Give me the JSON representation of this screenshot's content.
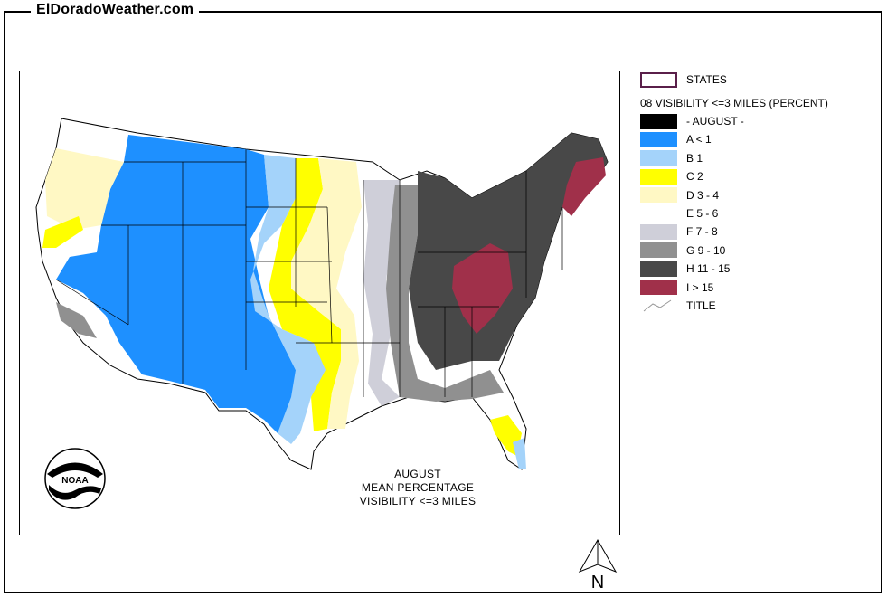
{
  "site": {
    "title": "ElDoradoWeather.com"
  },
  "map": {
    "caption": [
      "AUGUST",
      "MEAN PERCENTAGE",
      "VISIBILITY <=3 MILES"
    ],
    "logo_text": "NOAA",
    "north_label": "N"
  },
  "legend": {
    "states_label": "STATES",
    "layer_title": "08 VISIBILITY <=3 MILES (PERCENT)",
    "items": [
      {
        "label": "- AUGUST -",
        "color": "#000000"
      },
      {
        "label": "A < 1",
        "color": "#1e90ff"
      },
      {
        "label": "B 1",
        "color": "#a4d3fa"
      },
      {
        "label": "C 2",
        "color": "#ffff00"
      },
      {
        "label": "D 3 - 4",
        "color": "#fff8c4"
      },
      {
        "label": "E 5 - 6",
        "color": "#ffffff"
      },
      {
        "label": "F 7 - 8",
        "color": "#cfcfd9"
      },
      {
        "label": "G 9 - 10",
        "color": "#909090"
      },
      {
        "label": "H 11 - 15",
        "color": "#484848"
      },
      {
        "label": "I > 15",
        "color": "#a0304a"
      }
    ],
    "title_label": "TITLE",
    "states_outline_color": "#5a1f4a"
  }
}
